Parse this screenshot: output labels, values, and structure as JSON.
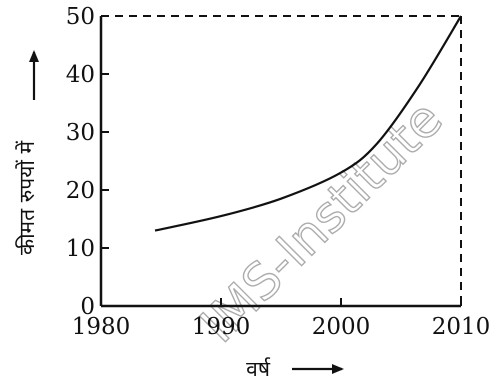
{
  "chart_data": {
    "type": "line",
    "x_ticks": [
      "1980",
      "1990",
      "2000",
      "2010"
    ],
    "y_ticks": [
      "0",
      "10",
      "20",
      "30",
      "40",
      "50"
    ],
    "xlim": [
      1980,
      2010
    ],
    "ylim": [
      0,
      50
    ],
    "xlabel": "वर्ष",
    "ylabel": "कीमत रुपयों में",
    "series": [
      {
        "x": [
          1984.5,
          1990,
          1995,
          2000,
          2003,
          2006.5,
          2010
        ],
        "y": [
          13,
          15.5,
          18.5,
          23,
          28,
          38,
          50
        ]
      }
    ],
    "reference_lines": [
      {
        "type": "horizontal",
        "y": 50,
        "style": "dashed"
      },
      {
        "type": "vertical",
        "x": 2010,
        "style": "dashed"
      }
    ],
    "watermark": "IMS-Institute",
    "grid": false
  }
}
